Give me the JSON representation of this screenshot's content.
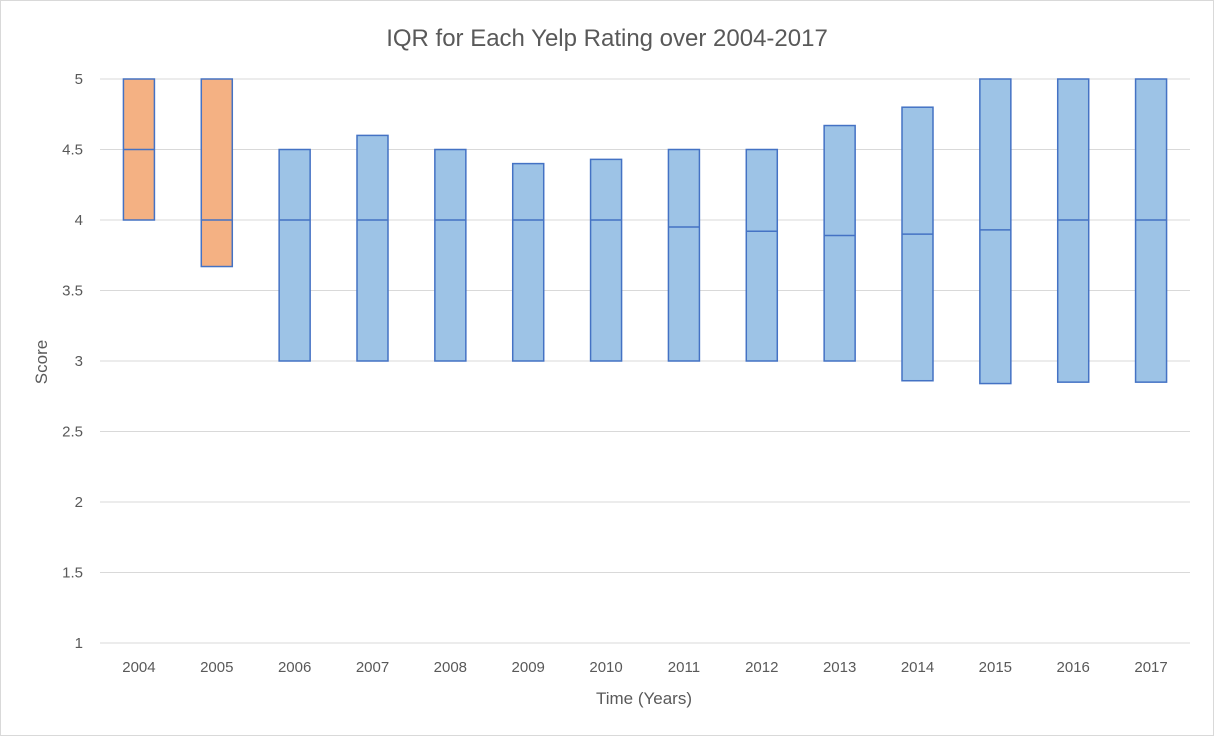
{
  "chart_data": {
    "type": "box",
    "title": "IQR for Each Yelp Rating over 2004-2017",
    "xlabel": "Time (Years)",
    "ylabel": "Score",
    "ylim": [
      1,
      5
    ],
    "yticks": [
      "1",
      "1.5",
      "2",
      "2.5",
      "3",
      "3.5",
      "4",
      "4.5",
      "5"
    ],
    "categories": [
      "2004",
      "2005",
      "2006",
      "2007",
      "2008",
      "2009",
      "2010",
      "2011",
      "2012",
      "2013",
      "2014",
      "2015",
      "2016",
      "2017"
    ],
    "q1": [
      4.0,
      3.67,
      3.0,
      3.0,
      3.0,
      3.0,
      3.0,
      3.0,
      3.0,
      3.0,
      2.86,
      2.84,
      2.85,
      2.85
    ],
    "median": [
      4.5,
      4.0,
      4.0,
      4.0,
      4.0,
      4.0,
      4.0,
      3.95,
      3.92,
      3.89,
      3.9,
      3.93,
      4.0,
      4.0
    ],
    "q3": [
      5.0,
      5.0,
      4.5,
      4.6,
      4.5,
      4.4,
      4.43,
      4.5,
      4.5,
      4.67,
      4.8,
      5.0,
      5.0,
      5.0
    ],
    "grid": true,
    "legend": "none",
    "colors": {
      "highlight_fill": "#f4b183",
      "default_fill": "#9dc3e6",
      "box_stroke": "#4472c4",
      "grid": "#d9d9d9",
      "text": "#595959"
    },
    "highlighted_categories": [
      "2004",
      "2005"
    ]
  }
}
